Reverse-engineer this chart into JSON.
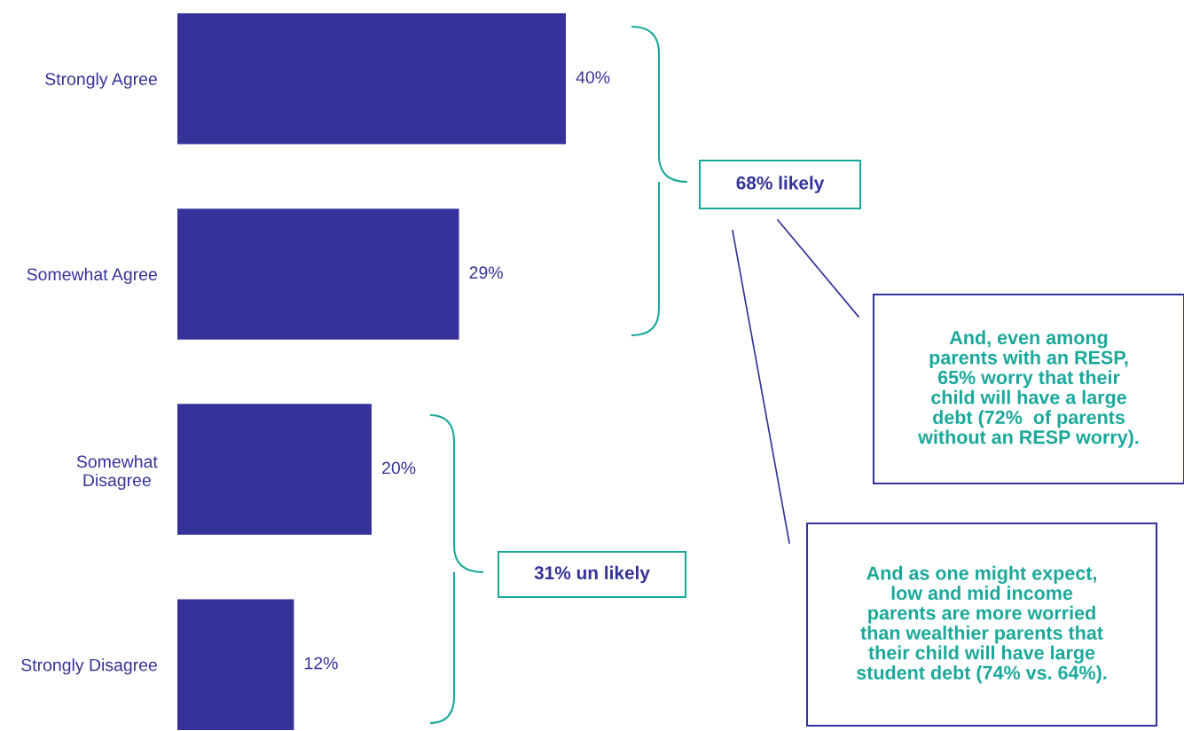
{
  "chart_data": {
    "type": "bar",
    "orientation": "horizontal",
    "categories": [
      "Strongly Agree",
      "Somewhat Agree",
      "Somewhat\nDisagree",
      "Strongly Disagree"
    ],
    "values": [
      40,
      29,
      20,
      12
    ],
    "value_labels": [
      "40%",
      "29%",
      "20%",
      "12%"
    ],
    "color": "#353399",
    "annotations": [
      "68% likely",
      "31% un likely",
      "And, even among parents with an RESP, 65% worry that their child will have a large debt (72%  of parents without an RESP worry).",
      "And as one might expect, low and mid income parents are more worried than wealthier parents that their child will have large student debt (74% vs. 64%)."
    ],
    "grid": false
  }
}
